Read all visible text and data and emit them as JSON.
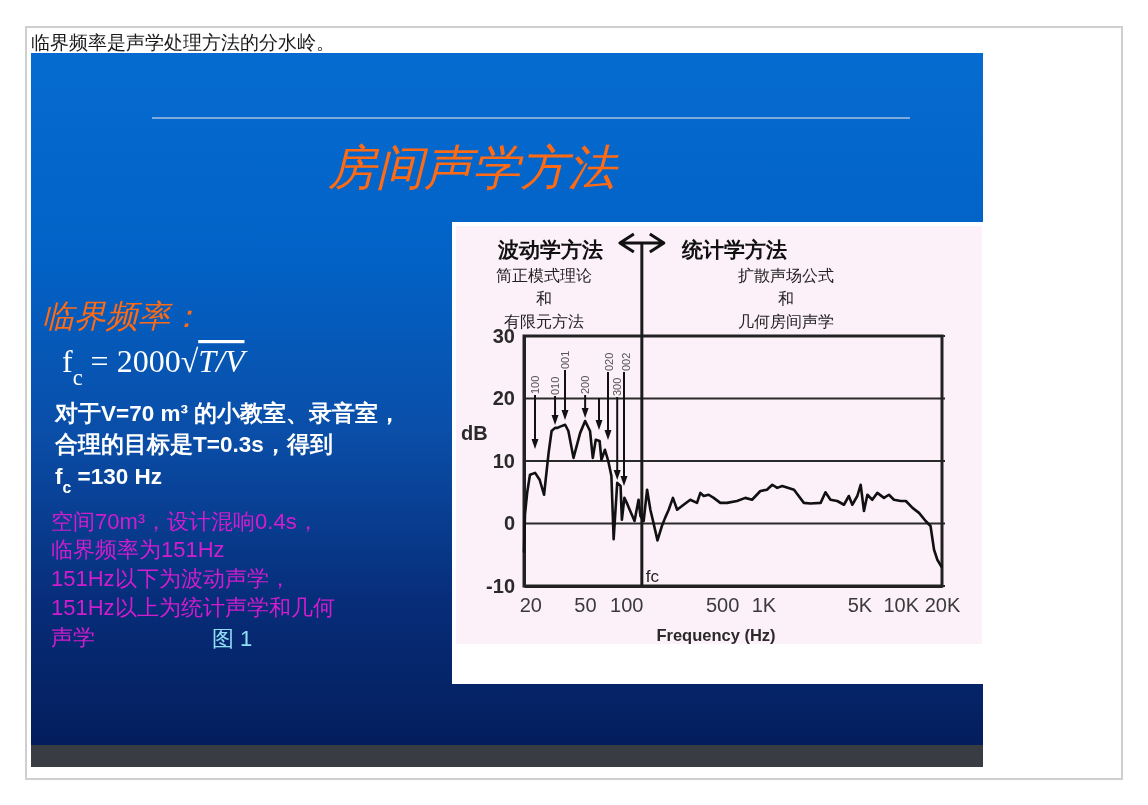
{
  "chart_data": {
    "type": "line",
    "title": "房间声学方法",
    "xlabel": "Frequency (Hz)",
    "ylabel": "dB",
    "x": [
      18,
      18.3,
      19,
      19.9,
      21.7,
      23.4,
      25.2,
      27.2,
      28.6,
      30.3,
      31.6,
      33,
      35.9,
      37.9,
      41.3,
      46.2,
      50.2,
      54.5,
      57.1,
      60,
      64,
      66,
      70,
      74,
      78,
      81,
      86,
      91,
      93,
      97,
      101,
      106,
      115,
      123,
      127,
      134,
      142,
      150,
      158,
      169,
      182,
      192,
      204,
      219,
      235,
      262,
      293,
      328,
      347,
      367,
      399,
      434,
      485,
      543,
      642,
      738,
      826,
      950,
      1060,
      1160,
      1260,
      1370,
      1670,
      1970,
      2200,
      2610,
      2830,
      3080,
      3450,
      3860,
      4190,
      4440,
      4830,
      5110,
      5400,
      5720,
      6210,
      6760,
      7550,
      8210,
      8930,
      10000,
      10900,
      12200,
      13600,
      15200,
      16500,
      17500,
      18500,
      19800
    ],
    "series": [
      {
        "color": "#111111",
        "values": [
          -4.5,
          1.5,
          5,
          7.8,
          8.1,
          7,
          4.6,
          11.3,
          14.8,
          15.3,
          15.3,
          15.5,
          15.8,
          14.8,
          10.5,
          14.5,
          16.4,
          14.8,
          10.5,
          13.4,
          13.2,
          10.2,
          11.8,
          10,
          7.6,
          -2.5,
          6.5,
          6,
          0.6,
          4.1,
          3.3,
          2.2,
          0.4,
          3.8,
          1.2,
          0.4,
          5.4,
          2.2,
          0.1,
          -2.7,
          -0.4,
          0.9,
          2.2,
          4.1,
          2.2,
          3,
          3.8,
          3.3,
          4.9,
          4.4,
          4.6,
          4.1,
          3.3,
          3.3,
          3.6,
          4.1,
          3.8,
          5.2,
          5.4,
          6.2,
          5.7,
          6,
          5.4,
          3.3,
          3.2,
          3.3,
          5,
          3.8,
          3.6,
          3,
          4.4,
          3,
          4.4,
          6.2,
          2,
          4.6,
          3.8,
          4.9,
          4.1,
          4.6,
          3.8,
          3.6,
          3.6,
          2.5,
          1.7,
          0.4,
          -0.4,
          -4.2,
          -5.8,
          -6.9
        ]
      }
    ],
    "log": "x",
    "xlim": [
      18,
      20000
    ],
    "xticks": [
      20,
      50,
      100,
      500,
      {
        "value": 1000,
        "label": "1K"
      },
      {
        "value": 5000,
        "label": "5K"
      },
      {
        "value": 10000,
        "label": "10K"
      },
      {
        "value": 20000,
        "label": "20K"
      }
    ],
    "ylim": [
      -10,
      30
    ],
    "yticks": [
      -10,
      0,
      10,
      20,
      30
    ],
    "grid": "y",
    "ref_lines": [
      {
        "axis": "x",
        "value": 130,
        "label": "fc"
      }
    ],
    "annotations": [
      "临界频率是声学处理方法的分水岭。",
      "临界频率：",
      "f$_{c}$ = 2000√T/V",
      "对于V=70 m³ 的小教室、录音室，",
      "合理的目标是T=0.3s，得到",
      "f$_{c}$ =130 Hz",
      "空间70m³，设计混响0.4s，",
      "临界频率为151Hz",
      "151Hz以下为波动声学，",
      "151Hz以上为统计声学和几何",
      "声学",
      "图 1",
      "波动学方法",
      "统计学方法",
      "简正模式理论",
      "和",
      "有限元方法",
      "扩散声场公式",
      "和",
      "几何房间声学",
      "100",
      {
        "text": "010",
        "x": 30.3,
        "y": 15.3
      },
      "001",
      {
        "text": "200",
        "x": 50.2,
        "y": 16.4
      },
      "020",
      {
        "text": "300",
        "x": 86,
        "y": 6.5
      },
      "002"
    ]
  }
}
